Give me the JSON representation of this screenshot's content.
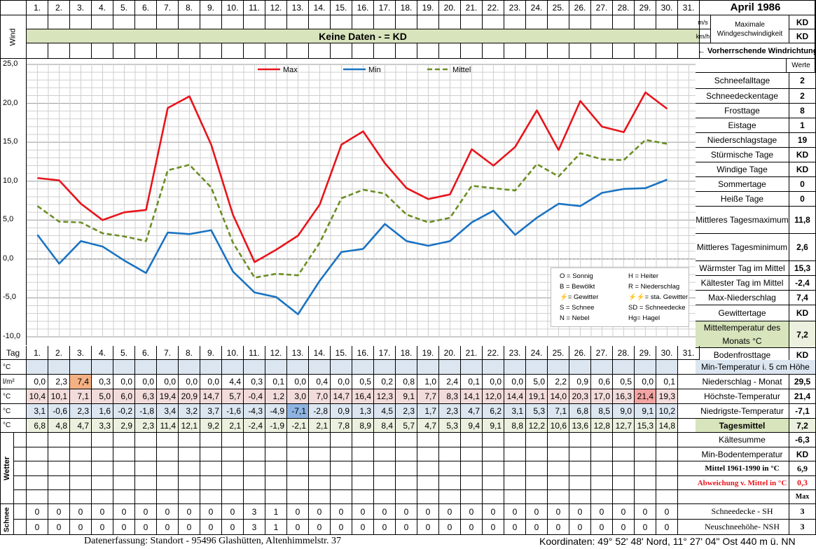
{
  "header": {
    "month_title": "April 1986",
    "days": [
      "1.",
      "2.",
      "3.",
      "4.",
      "5.",
      "6.",
      "7.",
      "8.",
      "9.",
      "10.",
      "11.",
      "12.",
      "13.",
      "14.",
      "15.",
      "16.",
      "17.",
      "18.",
      "19.",
      "20.",
      "21.",
      "22.",
      "23.",
      "24.",
      "25.",
      "26.",
      "27.",
      "28.",
      "29.",
      "30.",
      "31."
    ],
    "wind_label": "Wind",
    "unit_ms": "m/s",
    "unit_kmh": "km/h",
    "max_wind_label": "Maximale Windgeschwindigkeit",
    "max_wind_ms": "KD",
    "max_wind_kmh": "KD",
    "no_data_banner": "Keine Daten -  = KD",
    "wind_dir_label": "← Vorherrschende Windrichtung",
    "werte_label": "Werte",
    "tag_label": "Tag"
  },
  "chart_data": {
    "type": "line",
    "x": [
      1,
      2,
      3,
      4,
      5,
      6,
      7,
      8,
      9,
      10,
      11,
      12,
      13,
      14,
      15,
      16,
      17,
      18,
      19,
      20,
      21,
      22,
      23,
      24,
      25,
      26,
      27,
      28,
      29,
      30
    ],
    "ylim": [
      -10,
      25
    ],
    "yticks": [
      "25,0",
      "20,0",
      "15,0",
      "10,0",
      "5,0",
      "0,0",
      "-5,0",
      "-10,0"
    ],
    "grid": true,
    "legend_position": "top",
    "series": [
      {
        "name": "Max",
        "color": "#e8141b",
        "dash": "",
        "values": [
          10.4,
          10.1,
          7.1,
          5.0,
          6.0,
          6.3,
          19.4,
          20.9,
          14.7,
          5.7,
          -0.4,
          1.2,
          3.0,
          7.0,
          14.7,
          16.4,
          12.3,
          9.1,
          7.7,
          8.3,
          14.1,
          12.0,
          14.4,
          19.1,
          14.0,
          20.3,
          17.0,
          16.3,
          21.4,
          19.3
        ]
      },
      {
        "name": "Min",
        "color": "#1a73c2",
        "dash": "",
        "values": [
          3.1,
          -0.6,
          2.3,
          1.6,
          -0.2,
          -1.8,
          3.4,
          3.2,
          3.7,
          -1.6,
          -4.3,
          -4.9,
          -7.1,
          -2.8,
          0.9,
          1.3,
          4.5,
          2.3,
          1.7,
          2.3,
          4.7,
          6.2,
          3.1,
          5.3,
          7.1,
          6.8,
          8.5,
          9.0,
          9.1,
          10.2
        ]
      },
      {
        "name": "Mittel",
        "color": "#6b8e23",
        "dash": "7,4",
        "values": [
          6.8,
          4.8,
          4.7,
          3.3,
          2.9,
          2.3,
          11.4,
          12.1,
          9.2,
          2.1,
          -2.4,
          -1.9,
          -2.1,
          2.1,
          7.8,
          8.9,
          8.4,
          5.7,
          4.7,
          5.3,
          9.4,
          9.1,
          8.8,
          12.2,
          10.6,
          13.6,
          12.8,
          12.7,
          15.3,
          14.8
        ]
      }
    ]
  },
  "weather_legend": [
    [
      "O = Sonnig",
      "H = Heiter"
    ],
    [
      "B = Bewölkt",
      "R = Niederschlag"
    ],
    [
      "⚡= Gewitter",
      "⚡⚡= sta. Gewitter"
    ],
    [
      "S = Schnee",
      "SD = Schneedecke"
    ],
    [
      "N = Nebel",
      "Hg= Hagel"
    ]
  ],
  "stats": [
    {
      "label": "Schneefalltage",
      "value": "2"
    },
    {
      "label": "Schneedeckentage",
      "value": "2"
    },
    {
      "label": "Frosttage",
      "value": "8"
    },
    {
      "label": "Eistage",
      "value": "1"
    },
    {
      "label": "Niederschlagstage",
      "value": "19"
    },
    {
      "label": "Stürmische Tage",
      "value": "KD"
    },
    {
      "label": "Windige Tage",
      "value": "KD"
    },
    {
      "label": "Sommertage",
      "value": "0"
    },
    {
      "label": "Heiße Tage",
      "value": "0"
    },
    {
      "label": "Mittleres Tagesmaximum",
      "value": "11,8"
    },
    {
      "label": "Mittleres Tagesminimum",
      "value": "2,6"
    },
    {
      "label": "Wärmster Tag im Mittel",
      "value": "15,3"
    },
    {
      "label": "Kältester Tag im Mittel",
      "value": "-2,4"
    },
    {
      "label": "Max-Niederschlag",
      "value": "7,4"
    },
    {
      "label": "Gewittertage",
      "value": "KD"
    },
    {
      "label": "Mitteltemperatur des Monats °C",
      "value": "7,2"
    },
    {
      "label": "Bodenfrosttage",
      "value": "KD"
    }
  ],
  "right_lower": [
    {
      "label": "Min-Temperatur i. 5 cm Höhe",
      "value": ""
    },
    {
      "label": "Niederschlag - Monat",
      "value": "29,5"
    },
    {
      "label": "Höchste-Temperatur",
      "value": "21,4"
    },
    {
      "label": "Niedrigste-Temperatur",
      "value": "-7,1"
    },
    {
      "label": "Tagesmittel",
      "value": "7,2"
    },
    {
      "label": "Kältesumme",
      "value": "-6,3"
    },
    {
      "label": "Min-Bodentemperatur",
      "value": "KD"
    },
    {
      "label": "Mittel 1961-1990 in °C",
      "value": "6,9"
    },
    {
      "label": "Abweichung v. Mittel in °C",
      "value": "0,3"
    },
    {
      "label": "",
      "value": "Max"
    },
    {
      "label": "Schneedecke -  SH",
      "value": "3"
    },
    {
      "label": "Neuschneehöhe- NSH",
      "value": "3"
    }
  ],
  "table": {
    "row_units": [
      "°C",
      "l/m²",
      "°C",
      "°C",
      "°C"
    ],
    "precip": [
      "0,0",
      "2,3",
      "7,4",
      "0,3",
      "0,0",
      "0,0",
      "0,0",
      "0,0",
      "0,0",
      "4,4",
      "0,3",
      "0,1",
      "0,0",
      "0,4",
      "0,0",
      "0,5",
      "0,2",
      "0,8",
      "1,0",
      "2,4",
      "0,1",
      "0,0",
      "0,0",
      "5,0",
      "2,2",
      "0,9",
      "0,6",
      "0,5",
      "0,0",
      "0,1"
    ],
    "max": [
      "10,4",
      "10,1",
      "7,1",
      "5,0",
      "6,0",
      "6,3",
      "19,4",
      "20,9",
      "14,7",
      "5,7",
      "-0,4",
      "1,2",
      "3,0",
      "7,0",
      "14,7",
      "16,4",
      "12,3",
      "9,1",
      "7,7",
      "8,3",
      "14,1",
      "12,0",
      "14,4",
      "19,1",
      "14,0",
      "20,3",
      "17,0",
      "16,3",
      "21,4",
      "19,3"
    ],
    "min": [
      "3,1",
      "-0,6",
      "2,3",
      "1,6",
      "-0,2",
      "-1,8",
      "3,4",
      "3,2",
      "3,7",
      "-1,6",
      "-4,3",
      "-4,9",
      "-7,1",
      "-2,8",
      "0,9",
      "1,3",
      "4,5",
      "2,3",
      "1,7",
      "2,3",
      "4,7",
      "6,2",
      "3,1",
      "5,3",
      "7,1",
      "6,8",
      "8,5",
      "9,0",
      "9,1",
      "10,2"
    ],
    "mean": [
      "6,8",
      "4,8",
      "4,7",
      "3,3",
      "2,9",
      "2,3",
      "11,4",
      "12,1",
      "9,2",
      "2,1",
      "-2,4",
      "-1,9",
      "-2,1",
      "2,1",
      "7,8",
      "8,9",
      "8,4",
      "5,7",
      "4,7",
      "5,3",
      "9,4",
      "9,1",
      "8,8",
      "12,2",
      "10,6",
      "13,6",
      "12,8",
      "12,7",
      "15,3",
      "14,8"
    ],
    "wetter_label": "Wetter",
    "schnee_label": "Schnee",
    "snow_sh": [
      "0",
      "0",
      "0",
      "0",
      "0",
      "0",
      "0",
      "0",
      "0",
      "0",
      "3",
      "1",
      "0",
      "0",
      "0",
      "0",
      "0",
      "0",
      "0",
      "0",
      "0",
      "0",
      "0",
      "0",
      "0",
      "0",
      "0",
      "0",
      "0",
      "0"
    ],
    "snow_nsh": [
      "0",
      "0",
      "0",
      "0",
      "0",
      "0",
      "0",
      "0",
      "0",
      "0",
      "3",
      "1",
      "0",
      "0",
      "0",
      "0",
      "0",
      "0",
      "0",
      "0",
      "0",
      "0",
      "0",
      "0",
      "0",
      "0",
      "0",
      "0",
      "0",
      "0"
    ]
  },
  "footer": {
    "left": "Datenerfassung:  Standort -   95496  Glashütten, Altenhimmelstr. 37",
    "right": "Koordinaten:  49° 52' 48' Nord,  11° 27' 04\" Ost   440 m ü. NN"
  },
  "colors": {
    "banner_bg": "#d8e4bc",
    "blue_row_bg": "#dce6f1",
    "red_row_bg": "#f2dcdb",
    "green_row_bg": "#ebf1de",
    "highlight_orange": "#f4b183",
    "highlight_red": "#f4a3a3",
    "highlight_blue": "#8db4e2"
  }
}
